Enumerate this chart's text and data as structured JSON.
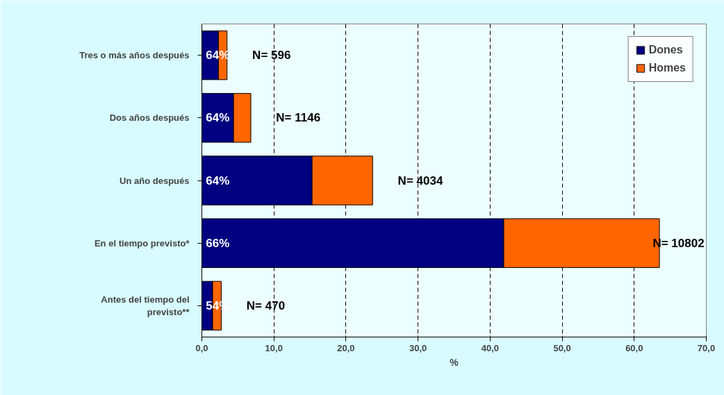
{
  "chart_data": {
    "type": "bar",
    "orientation": "horizontal",
    "stacked": true,
    "xlabel": "%",
    "categories": [
      "Tres o más años después",
      "Dos años después",
      "Un año después",
      "En el tiempo previsto*",
      "Antes del tiempo del\nprevisto**"
    ],
    "series": [
      {
        "name": "Dones",
        "color": "#000080",
        "values": [
          2.3,
          4.4,
          15.3,
          41.9,
          1.5
        ]
      },
      {
        "name": "Homes",
        "color": "#ff6600",
        "values": [
          1.2,
          2.4,
          8.4,
          21.6,
          1.2
        ]
      }
    ],
    "xlim": [
      0,
      70
    ],
    "xticks": [
      {
        "value": 0,
        "label": "0,0"
      },
      {
        "value": 10,
        "label": "10,0"
      },
      {
        "value": 20,
        "label": "20,0"
      },
      {
        "value": 30,
        "label": "30,0"
      },
      {
        "value": 40,
        "label": "40,0"
      },
      {
        "value": 50,
        "label": "50,0"
      },
      {
        "value": 60,
        "label": "60,0"
      },
      {
        "value": 70,
        "label": "70,0"
      }
    ],
    "grid": "x",
    "legend": "top right",
    "annotations": [
      "64%",
      "64%",
      "64%",
      "66%",
      "54%",
      "N= 596",
      "N= 1146",
      "N= 4034",
      "N= 10802",
      "N= 470"
    ]
  }
}
